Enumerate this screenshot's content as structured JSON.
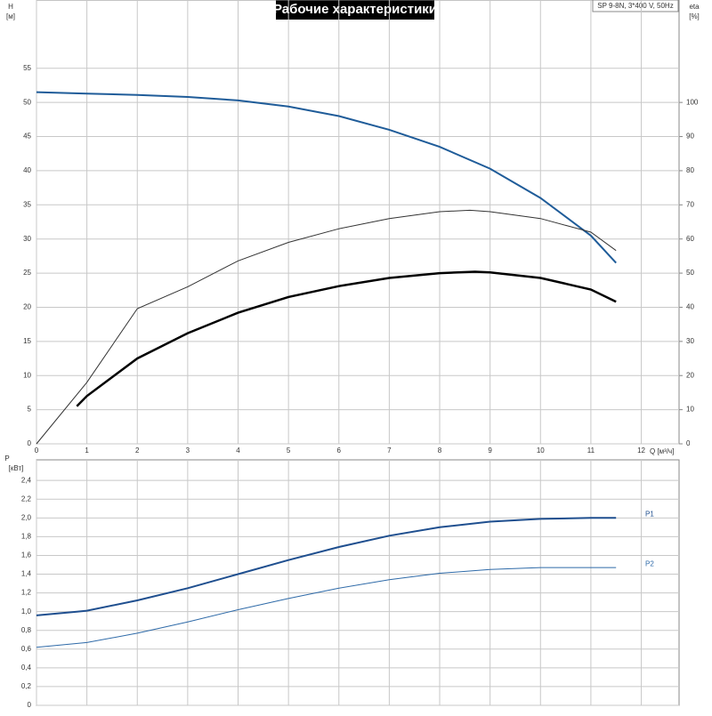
{
  "chart_data": [
    {
      "type": "line",
      "title": "Рабочие характеристики",
      "subtitle": "SP 9-8N, 3*400 V, 50Hz",
      "ylabel": "H",
      "yunit": "[м]",
      "y2label": "eta",
      "y2unit": "[%]",
      "xlabel": "Q [м³/ч]",
      "xlim": [
        0,
        12.75
      ],
      "xticks": [
        0,
        1,
        2,
        3,
        4,
        5,
        6,
        7,
        8,
        9,
        10,
        11,
        12
      ],
      "ylim": [
        0,
        65
      ],
      "yticks": [
        0,
        5,
        10,
        15,
        20,
        25,
        30,
        35,
        40,
        45,
        50,
        55
      ],
      "y2lim": [
        0,
        130
      ],
      "y2ticks": [
        0,
        10,
        20,
        30,
        40,
        50,
        60,
        70,
        80,
        90,
        100
      ],
      "grid": true,
      "series": [
        {
          "color": "#1f5c99",
          "x": [
            0,
            1,
            2,
            3,
            4,
            5,
            6,
            7,
            8,
            9,
            10,
            11,
            11.5
          ],
          "values": [
            51.5,
            51.3,
            51.1,
            50.8,
            50.3,
            49.4,
            48,
            46,
            43.5,
            40.3,
            36,
            30.5,
            26.5
          ]
        },
        {
          "color": "#333333",
          "axis": "y2",
          "x": [
            0,
            1,
            2,
            3,
            4,
            5,
            6,
            7,
            8,
            8.6,
            9,
            10,
            11,
            11.5
          ],
          "values": [
            0,
            18,
            39.6,
            46,
            53.6,
            59,
            63,
            66,
            68,
            68.4,
            68,
            66,
            62,
            56.6
          ]
        },
        {
          "color": "#000000",
          "axis": "y2",
          "x": [
            0.8,
            1,
            2,
            3,
            4,
            5,
            6,
            7,
            8,
            8.7,
            9,
            10,
            11,
            11.5
          ],
          "values": [
            11,
            14,
            25,
            32.4,
            38.4,
            43,
            46.2,
            48.6,
            50,
            50.4,
            50.2,
            48.6,
            45.2,
            41.6
          ]
        }
      ]
    },
    {
      "type": "line",
      "ylabel": "P",
      "yunit": "[кВт]",
      "xlim": [
        0,
        12.75
      ],
      "ylim": [
        0,
        2.62
      ],
      "yticks": [
        0,
        {
          "value": 0.2,
          "label": "0,2"
        },
        {
          "value": 0.4,
          "label": "0,4"
        },
        {
          "value": 0.6,
          "label": "0,6"
        },
        {
          "value": 0.8,
          "label": "0,8"
        },
        {
          "value": 1.0,
          "label": "1,0"
        },
        {
          "value": 1.2,
          "label": "1,2"
        },
        {
          "value": 1.4,
          "label": "1,4"
        },
        {
          "value": 1.6,
          "label": "1,6"
        },
        {
          "value": 1.8,
          "label": "1,8"
        },
        {
          "value": 2.0,
          "label": "2,0"
        },
        {
          "value": 2.2,
          "label": "2,2"
        },
        {
          "value": 2.4,
          "label": "2,4"
        }
      ],
      "grid": true,
      "series": [
        {
          "name": "P1",
          "color": "#1f4f8f",
          "x": [
            0,
            0.8,
            1,
            2,
            3,
            4,
            5,
            6,
            7,
            8,
            9,
            10,
            11,
            11.5
          ],
          "values": [
            0.96,
            1.0,
            1.01,
            1.12,
            1.25,
            1.4,
            1.55,
            1.69,
            1.81,
            1.9,
            1.96,
            1.99,
            2.0,
            2.0
          ]
        },
        {
          "name": "P2",
          "color": "#2e6aa8",
          "x": [
            0,
            1,
            2,
            3,
            4,
            5,
            6,
            7,
            8,
            9,
            10,
            11,
            11.5
          ],
          "values": [
            0.62,
            0.67,
            0.77,
            0.89,
            1.02,
            1.14,
            1.25,
            1.34,
            1.41,
            1.45,
            1.47,
            1.47,
            1.47
          ]
        }
      ]
    }
  ]
}
